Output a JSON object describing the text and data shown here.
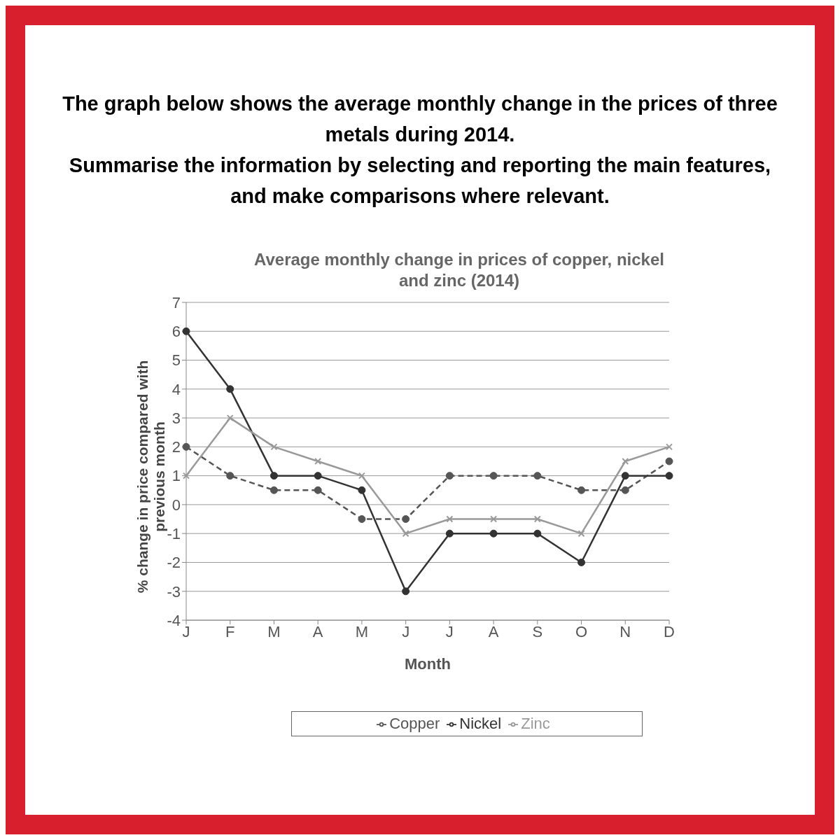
{
  "chart_data": {
    "type": "line",
    "title": "Average monthly change in prices of copper, nickel and zinc (2014)",
    "annotations": [
      "The graph below shows the average monthly change in the prices of three metals during 2014.",
      "Summarise the information by selecting and reporting the main features, and make comparisons where relevant."
    ],
    "xlabel": "Month",
    "ylabel": "% change in price compared with previous month",
    "categories": [
      "J",
      "F",
      "M",
      "A",
      "M",
      "J",
      "J",
      "A",
      "S",
      "O",
      "N",
      "D"
    ],
    "series": [
      {
        "name": "Copper",
        "color": "#555555",
        "line_style": "dashed",
        "marker": "circle",
        "values": [
          2,
          1,
          0.5,
          0.5,
          -0.5,
          -0.5,
          1,
          1,
          1,
          0.5,
          0.5,
          1.5
        ]
      },
      {
        "name": "Nickel",
        "color": "#333333",
        "line_style": "solid",
        "marker": "circle",
        "values": [
          6,
          4,
          1,
          1,
          0.5,
          -3,
          -1,
          -1,
          -1,
          -2,
          1,
          1
        ]
      },
      {
        "name": "Zinc",
        "color": "#999999",
        "line_style": "solid",
        "marker": "cross",
        "values": [
          1,
          3,
          2,
          1.5,
          1,
          -1,
          -0.5,
          -0.5,
          -0.5,
          -1,
          1.5,
          2
        ]
      }
    ],
    "ylim": [
      -4,
      7
    ],
    "yticks": [
      -4,
      -3,
      -2,
      -1,
      0,
      1,
      2,
      3,
      4,
      5,
      6,
      7
    ],
    "grid": "y",
    "legend": "bottom"
  }
}
